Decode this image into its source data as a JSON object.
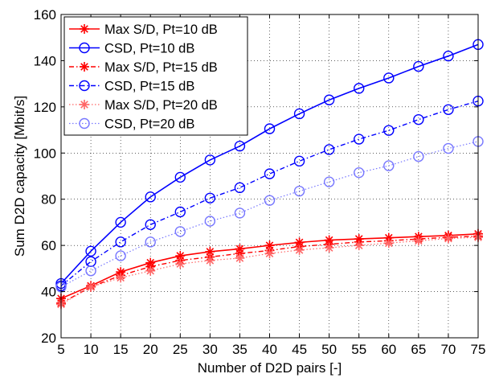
{
  "chart_data": {
    "type": "line",
    "title": "",
    "xlabel": "Number of D2D pairs [-]",
    "ylabel": "Sum D2D capacity [Mbit/s]",
    "xlim": [
      5,
      75
    ],
    "ylim": [
      20,
      160
    ],
    "x_ticks": [
      5,
      10,
      15,
      20,
      25,
      30,
      35,
      40,
      45,
      50,
      55,
      60,
      65,
      70,
      75
    ],
    "y_ticks": [
      20,
      40,
      60,
      80,
      100,
      120,
      140,
      160
    ],
    "grid": true,
    "legend_position": "top-left",
    "x": [
      5,
      10,
      15,
      20,
      25,
      30,
      35,
      40,
      45,
      50,
      55,
      60,
      65,
      70,
      75
    ],
    "series": [
      {
        "name": "Max S/D, Pt=10 dB",
        "color": "#ff0000",
        "line": "solid",
        "marker": "asterisk",
        "values": [
          37,
          42.5,
          48.5,
          52.5,
          55.5,
          57.3,
          58.5,
          60,
          61.3,
          62.3,
          62.8,
          63.3,
          63.8,
          64.3,
          65
        ]
      },
      {
        "name": "CSD, Pt=10 dB",
        "color": "#0000ff",
        "line": "solid",
        "marker": "circle",
        "values": [
          43.5,
          57.5,
          70,
          81,
          89.5,
          97,
          103,
          110.5,
          117,
          123,
          128,
          132.5,
          137.5,
          142,
          147
        ]
      },
      {
        "name": "Max S/D, Pt=15 dB",
        "color": "#ff0000",
        "line": "dashdot",
        "marker": "asterisk",
        "values": [
          35,
          42,
          47,
          50.8,
          53.5,
          55,
          56.5,
          57.8,
          59.5,
          60.5,
          61.5,
          62,
          62.8,
          63.5,
          64
        ]
      },
      {
        "name": "CSD, Pt=15 dB",
        "color": "#0000ff",
        "line": "dashdot",
        "marker": "circle",
        "values": [
          42.5,
          53,
          61.5,
          69,
          74.5,
          80.5,
          85,
          91,
          96.5,
          101.5,
          106,
          109.8,
          114.5,
          118.8,
          122.5
        ]
      },
      {
        "name": "Max S/D, Pt=20 dB",
        "color": "#ff6666",
        "line": "dotted",
        "marker": "asterisk",
        "values": [
          34.5,
          42,
          46,
          49,
          52,
          53.5,
          54.5,
          56.5,
          58,
          59,
          60,
          61,
          62,
          63,
          63.5
        ]
      },
      {
        "name": "CSD, Pt=20 dB",
        "color": "#7777ff",
        "line": "dotted",
        "marker": "circle",
        "values": [
          42,
          49,
          55.5,
          61.5,
          66,
          70.5,
          74,
          79.5,
          83.5,
          87.5,
          91.5,
          94.5,
          98.5,
          102,
          105
        ]
      }
    ]
  }
}
